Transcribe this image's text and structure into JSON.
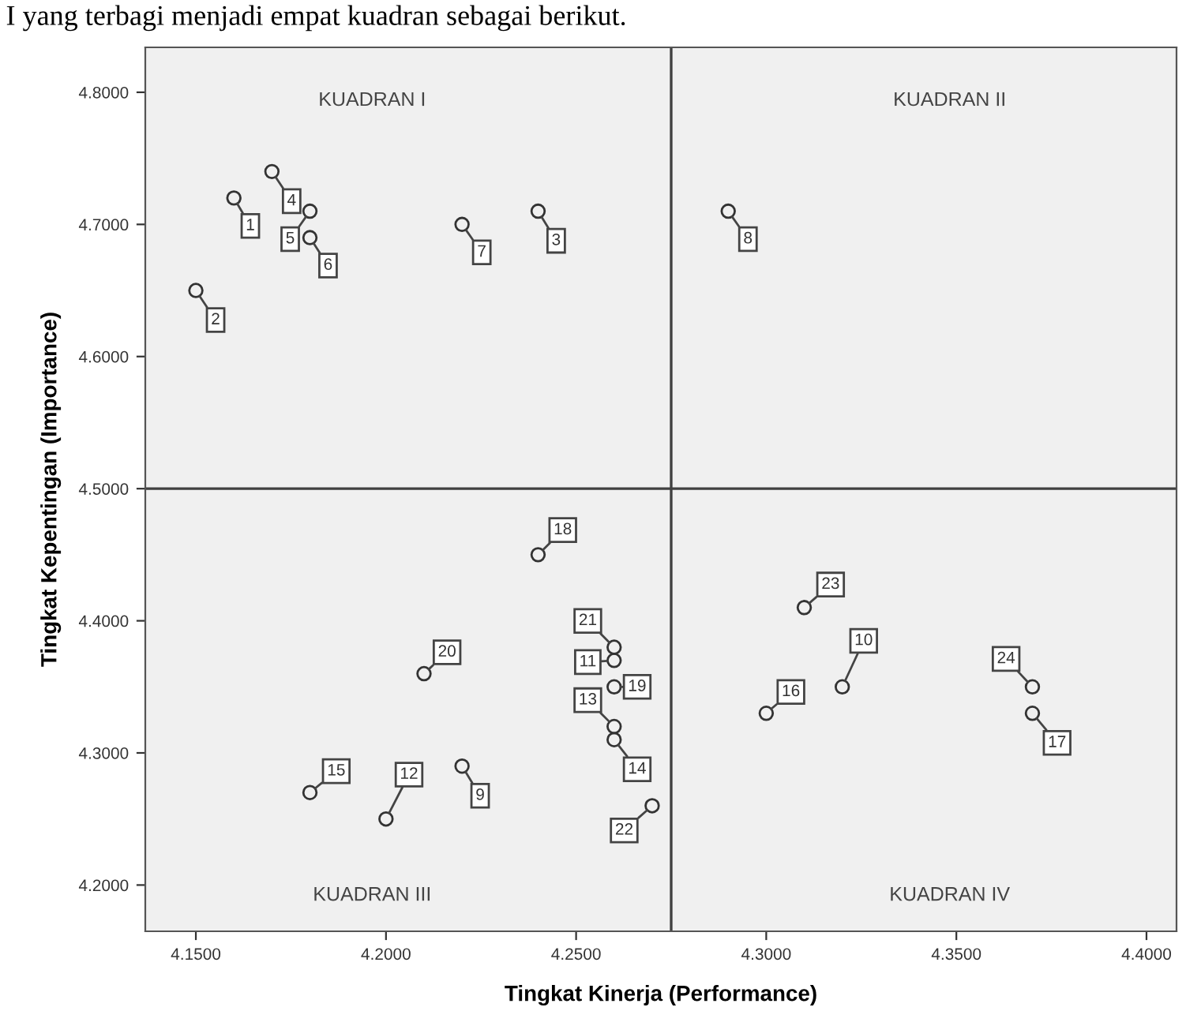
{
  "chart_data": {
    "type": "scatter",
    "xlabel": "Tingkat Kinerja (Performance)",
    "ylabel": "Tingkat Kepentingan (Importance)",
    "x": [
      4.16,
      4.15,
      4.24,
      4.17,
      4.18,
      4.18,
      4.22,
      4.29,
      4.22,
      4.32,
      4.26,
      4.2,
      4.26,
      4.26,
      4.18,
      4.3,
      4.37,
      4.24,
      4.26,
      4.21,
      4.26,
      4.27,
      4.31,
      4.37
    ],
    "series": [
      {
        "color": "#333333",
        "values": [
          4.72,
          4.65,
          4.71,
          4.74,
          4.71,
          4.69,
          4.7,
          4.71,
          4.29,
          4.35,
          4.37,
          4.25,
          4.32,
          4.31,
          4.27,
          4.33,
          4.33,
          4.45,
          4.35,
          4.36,
          4.38,
          4.26,
          4.41,
          4.35
        ]
      }
    ],
    "marker": "circle",
    "xlim": [
      4.1367,
      4.4079
    ],
    "ylim": [
      4.165,
      4.834
    ],
    "xticks": [
      {
        "value": 4.15,
        "label": "4.1500"
      },
      {
        "value": 4.2,
        "label": "4.2000"
      },
      {
        "value": 4.25,
        "label": "4.2500"
      },
      {
        "value": 4.3,
        "label": "4.3000"
      },
      {
        "value": 4.35,
        "label": "4.3500"
      },
      {
        "value": 4.4,
        "label": "4.4000"
      }
    ],
    "yticks": [
      {
        "value": 4.2,
        "label": "4.2000"
      },
      {
        "value": 4.3,
        "label": "4.3000"
      },
      {
        "value": 4.4,
        "label": "4.4000"
      },
      {
        "value": 4.5,
        "label": "4.5000"
      },
      {
        "value": 4.6,
        "label": "4.6000"
      },
      {
        "value": 4.7,
        "label": "4.7000"
      },
      {
        "value": 4.8,
        "label": "4.8000"
      }
    ],
    "ref_lines": [
      {
        "axis": "x",
        "value": 4.275,
        "color": "#404040"
      },
      {
        "axis": "y",
        "value": 4.5,
        "color": "#404040"
      }
    ],
    "grid": false,
    "annotations": [
      "I yang terbagi menjadi empat kuadran sebagai berikut.",
      "KUADRAN I",
      "KUADRAN II",
      "KUADRAN III",
      "KUADRAN IV",
      {
        "text": "1",
        "x": 4.16,
        "y": 4.72
      },
      {
        "text": "2",
        "x": 4.15,
        "y": 4.65
      },
      {
        "text": "3",
        "x": 4.24,
        "y": 4.71
      },
      {
        "text": "4",
        "x": 4.17,
        "y": 4.74
      },
      {
        "text": "5",
        "x": 4.18,
        "y": 4.71
      },
      {
        "text": "6",
        "x": 4.18,
        "y": 4.69
      },
      {
        "text": "7",
        "x": 4.22,
        "y": 4.7
      },
      {
        "text": "8",
        "x": 4.29,
        "y": 4.71
      },
      {
        "text": "9",
        "x": 4.22,
        "y": 4.29
      },
      {
        "text": "10",
        "x": 4.32,
        "y": 4.35
      },
      {
        "text": "11",
        "x": 4.26,
        "y": 4.37
      },
      {
        "text": "12",
        "x": 4.2,
        "y": 4.25
      },
      {
        "text": "13",
        "x": 4.26,
        "y": 4.32
      },
      {
        "text": "14",
        "x": 4.26,
        "y": 4.31
      },
      {
        "text": "15",
        "x": 4.18,
        "y": 4.27
      },
      {
        "text": "16",
        "x": 4.3,
        "y": 4.33
      },
      {
        "text": "17",
        "x": 4.37,
        "y": 4.33
      },
      {
        "text": "18",
        "x": 4.24,
        "y": 4.45
      },
      {
        "text": "19",
        "x": 4.26,
        "y": 4.35
      },
      {
        "text": "20",
        "x": 4.21,
        "y": 4.36
      },
      {
        "text": "21",
        "x": 4.26,
        "y": 4.38
      },
      {
        "text": "22",
        "x": 4.27,
        "y": 4.26
      },
      {
        "text": "23",
        "x": 4.31,
        "y": 4.41
      },
      {
        "text": "24",
        "x": 4.37,
        "y": 4.35
      }
    ]
  }
}
